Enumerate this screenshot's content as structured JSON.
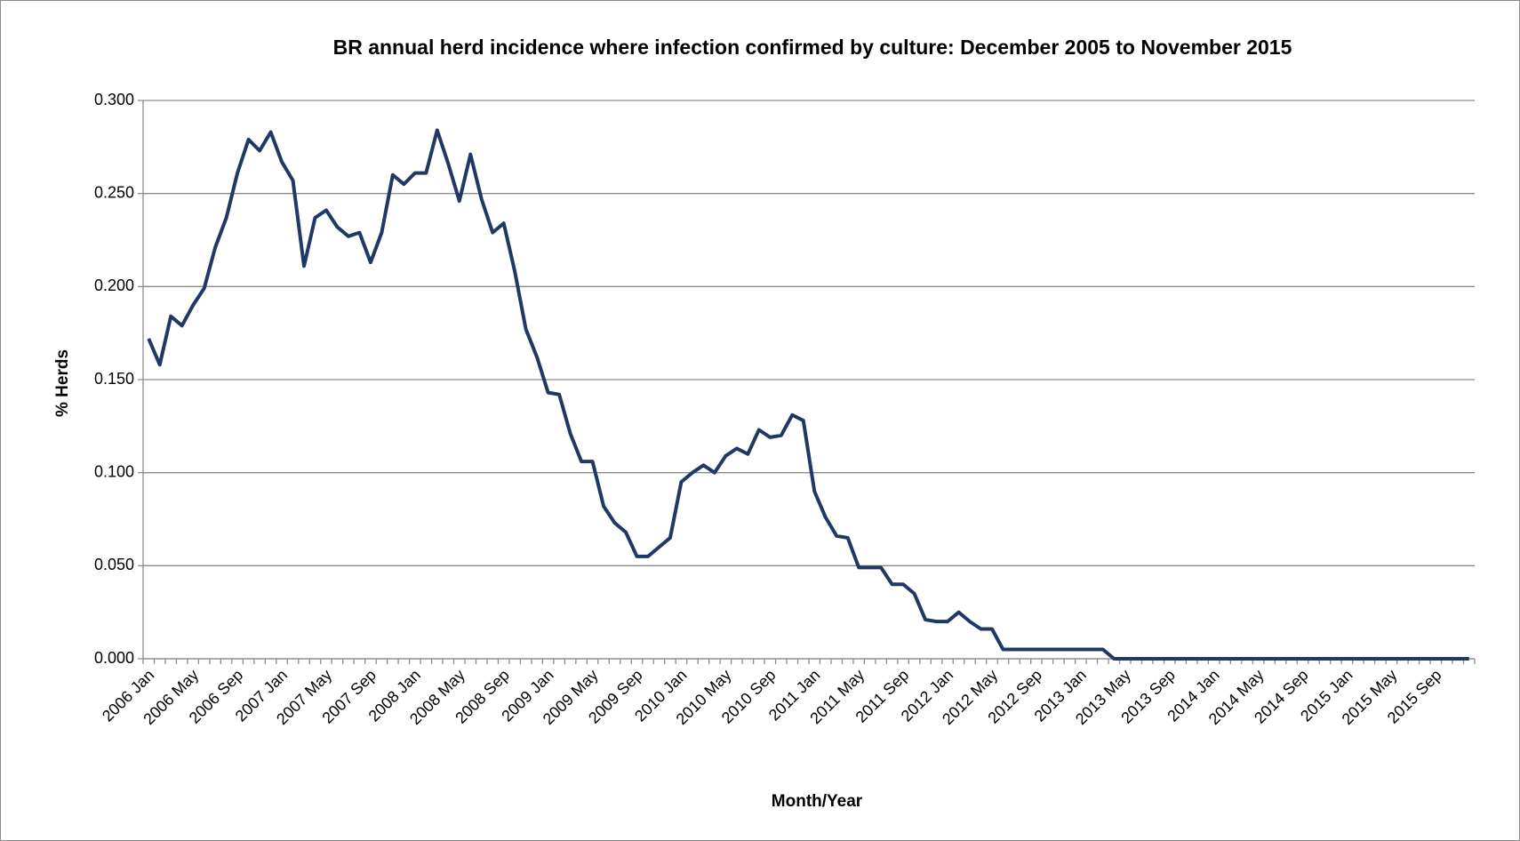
{
  "chart_data": {
    "type": "line",
    "title": "BR annual herd incidence where infection confirmed by culture: December 2005 to November 2015",
    "x_label": "Month/Year",
    "y_label": "% Herds",
    "categories": [
      "2006 Jan",
      null,
      null,
      null,
      "2006 May",
      null,
      null,
      null,
      "2006 Sep",
      null,
      null,
      null,
      "2007 Jan",
      null,
      null,
      null,
      "2007 May",
      null,
      null,
      null,
      "2007 Sep",
      null,
      null,
      null,
      "2008 Jan",
      null,
      null,
      null,
      "2008 May",
      null,
      null,
      null,
      "2008 Sep",
      null,
      null,
      null,
      "2009 Jan",
      null,
      null,
      null,
      "2009 May",
      null,
      null,
      null,
      "2009 Sep",
      null,
      null,
      null,
      "2010 Jan",
      null,
      null,
      null,
      "2010 May",
      null,
      null,
      null,
      "2010 Sep",
      null,
      null,
      null,
      "2011 Jan",
      null,
      null,
      null,
      "2011 May",
      null,
      null,
      null,
      "2011 Sep",
      null,
      null,
      null,
      "2012 Jan",
      null,
      null,
      null,
      "2012 May",
      null,
      null,
      null,
      "2012 Sep",
      null,
      null,
      null,
      "2013 Jan",
      null,
      null,
      null,
      "2013 May",
      null,
      null,
      null,
      "2013 Sep",
      null,
      null,
      null,
      "2014 Jan",
      null,
      null,
      null,
      "2014 May",
      null,
      null,
      null,
      "2014 Sep",
      null,
      null,
      null,
      "2015 Jan",
      null,
      null,
      null,
      "2015 May",
      null,
      null,
      null,
      "2015 Sep",
      null,
      null,
      null
    ],
    "series": [
      {
        "name": "% Herds",
        "color": "#1f3864",
        "values": [
          0.172,
          0.158,
          0.184,
          0.179,
          0.19,
          0.199,
          0.221,
          0.237,
          0.261,
          0.279,
          0.273,
          0.283,
          0.267,
          0.257,
          0.211,
          0.237,
          0.241,
          0.232,
          0.227,
          0.229,
          0.213,
          0.229,
          0.26,
          0.255,
          0.261,
          0.261,
          0.284,
          0.266,
          0.246,
          0.271,
          0.247,
          0.229,
          0.234,
          0.208,
          0.177,
          0.162,
          0.143,
          0.142,
          0.121,
          0.106,
          0.106,
          0.082,
          0.073,
          0.068,
          0.055,
          0.055,
          0.06,
          0.065,
          0.095,
          0.1,
          0.104,
          0.1,
          0.109,
          0.113,
          0.11,
          0.123,
          0.119,
          0.12,
          0.131,
          0.128,
          0.09,
          0.076,
          0.066,
          0.065,
          0.049,
          0.049,
          0.049,
          0.04,
          0.04,
          0.035,
          0.021,
          0.02,
          0.02,
          0.025,
          0.02,
          0.016,
          0.016,
          0.005,
          0.005,
          0.005,
          0.005,
          0.005,
          0.005,
          0.005,
          0.005,
          0.005,
          0.005,
          0,
          0,
          0,
          0,
          0,
          0,
          0,
          0,
          0,
          0,
          0,
          0,
          0,
          0,
          0,
          0,
          0,
          0,
          0,
          0,
          0,
          0,
          0,
          0,
          0,
          0,
          0,
          0,
          0,
          0,
          0,
          0,
          0
        ]
      }
    ],
    "ylim": [
      0,
      0.3
    ],
    "yticks": [
      {
        "value": 0,
        "label": "0.000"
      },
      {
        "value": 0.05,
        "label": "0.050"
      },
      {
        "value": 0.1,
        "label": "0.100"
      },
      {
        "value": 0.15,
        "label": "0.150"
      },
      {
        "value": 0.2,
        "label": "0.200"
      },
      {
        "value": 0.25,
        "label": "0.250"
      },
      {
        "value": 0.3,
        "label": "0.300"
      }
    ],
    "grid": true
  }
}
